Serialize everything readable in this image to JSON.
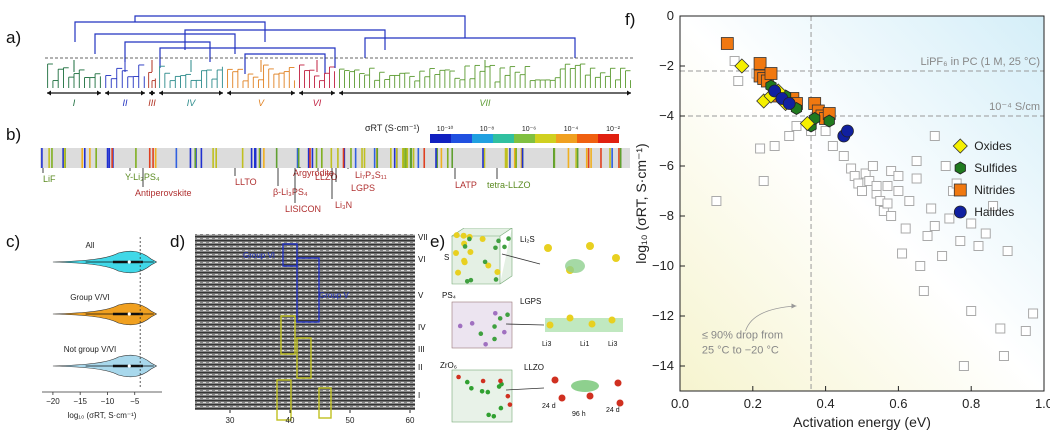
{
  "panels": {
    "a": {
      "label": "a)",
      "groups": [
        "I",
        "II",
        "III",
        "IV",
        "V",
        "VI",
        "VII"
      ],
      "group_colors": [
        "#1a6d3c",
        "#2030c0",
        "#b03020",
        "#2a8a8a",
        "#e08020",
        "#c02040",
        "#5a9a30"
      ]
    },
    "b": {
      "label": "b)",
      "colorbar_title": "σRT (S·cm⁻¹)",
      "colorbar_ticks": [
        "10⁻¹⁰",
        "10⁻⁸",
        "10⁻⁶",
        "10⁻⁴",
        "10⁻²"
      ],
      "annotations": [
        {
          "text": "LiF",
          "color": "#5a8a20"
        },
        {
          "text": "Y-Li₃PS₄",
          "color": "#5a8a20"
        },
        {
          "text": "Antiperovskite",
          "color": "#b03030"
        },
        {
          "text": "LLTO",
          "color": "#b03030"
        },
        {
          "text": "Argyrodite",
          "color": "#b03030"
        },
        {
          "text": "β-Li₃PS₄",
          "color": "#b03030"
        },
        {
          "text": "LISICON",
          "color": "#b03030"
        },
        {
          "text": "LLZO",
          "color": "#b03030"
        },
        {
          "text": "Li₇P₃S₁₁",
          "color": "#b03030"
        },
        {
          "text": "LGPS",
          "color": "#b03030"
        },
        {
          "text": "Li₃N",
          "color": "#b03030"
        },
        {
          "text": "LATP",
          "color": "#b03030"
        },
        {
          "text": "tetra-LLZO",
          "color": "#5a8a20"
        }
      ]
    },
    "c": {
      "label": "c)",
      "rows": [
        "All",
        "Group V/VI",
        "Not group V/VI"
      ],
      "xticks": [
        "−20",
        "−15",
        "−10",
        "−5"
      ],
      "xlabel": "log₁₀ (σRT, S·cm⁻¹)"
    },
    "d": {
      "label": "d)",
      "row_labels": [
        "VII",
        "VI",
        "V",
        "IV",
        "III",
        "II",
        "I"
      ],
      "box_labels": [
        "Group VI",
        "Group V"
      ],
      "xticks": [
        "30",
        "40",
        "50",
        "60"
      ]
    },
    "e": {
      "label": "e)",
      "structures": [
        "Li₂S",
        "PS₄",
        "LGPS",
        "ZrO₆",
        "LLZO"
      ],
      "sites": [
        "S",
        "Li3",
        "Li1",
        "Li3"
      ],
      "times": [
        "24 d",
        "96 h",
        "24 d"
      ]
    },
    "f": {
      "label": "f)"
    }
  },
  "chart_data": {
    "type": "scatter",
    "xlabel": "Activation energy (eV)",
    "ylabel": "log₁₀ (σRT, S·cm⁻¹)",
    "xlim": [
      0.0,
      1.0
    ],
    "ylim": [
      -15,
      0
    ],
    "xticks": [
      "0.0",
      "0.2",
      "0.4",
      "0.6",
      "0.8",
      "1.0"
    ],
    "yticks": [
      "0",
      "−2",
      "−4",
      "−6",
      "−8",
      "−10",
      "−12",
      "−14"
    ],
    "reference_lines": [
      {
        "axis": "y",
        "value": -2.2,
        "label": "LiPF₆ in PC (1 M, 25 °C)"
      },
      {
        "axis": "y",
        "value": -4.0,
        "label": "10⁻⁴ S/cm"
      },
      {
        "axis": "x",
        "value": 0.36,
        "label": "≤ 90% drop from 25 °C to −20 °C"
      }
    ],
    "legend_position": "right",
    "series": [
      {
        "name": "Oxides",
        "color": "#f5f000",
        "marker": "diamond",
        "points": [
          [
            0.17,
            -2.0
          ],
          [
            0.23,
            -3.4
          ],
          [
            0.25,
            -3.2
          ],
          [
            0.27,
            -3.0
          ],
          [
            0.29,
            -3.5
          ],
          [
            0.35,
            -4.3
          ]
        ]
      },
      {
        "name": "Sulfides",
        "color": "#1f7a1f",
        "marker": "hexagon",
        "points": [
          [
            0.25,
            -2.8
          ],
          [
            0.29,
            -3.2
          ],
          [
            0.32,
            -3.7
          ],
          [
            0.36,
            -4.4
          ],
          [
            0.37,
            -4.1
          ],
          [
            0.41,
            -4.2
          ]
        ]
      },
      {
        "name": "Nitrides",
        "color": "#f07810",
        "marker": "square",
        "points": [
          [
            0.13,
            -1.1
          ],
          [
            0.22,
            -1.9
          ],
          [
            0.22,
            -2.4
          ],
          [
            0.23,
            -2.5
          ],
          [
            0.24,
            -2.6
          ],
          [
            0.25,
            -2.3
          ],
          [
            0.27,
            -3.2
          ],
          [
            0.31,
            -3.3
          ],
          [
            0.32,
            -3.5
          ],
          [
            0.37,
            -3.5
          ],
          [
            0.38,
            -3.8
          ],
          [
            0.39,
            -4.0
          ],
          [
            0.4,
            -4.1
          ],
          [
            0.41,
            -3.9
          ]
        ]
      },
      {
        "name": "Halides",
        "color": "#1020a0",
        "marker": "circle",
        "points": [
          [
            0.26,
            -3.0
          ],
          [
            0.28,
            -3.3
          ],
          [
            0.3,
            -3.5
          ],
          [
            0.45,
            -4.8
          ],
          [
            0.46,
            -4.6
          ]
        ]
      },
      {
        "name": "",
        "color": "#999999",
        "marker": "open-square",
        "points": [
          [
            0.15,
            -1.8
          ],
          [
            0.16,
            -2.6
          ],
          [
            0.21,
            -2.3
          ],
          [
            0.22,
            -5.3
          ],
          [
            0.23,
            -6.6
          ],
          [
            0.26,
            -5.2
          ],
          [
            0.3,
            -4.8
          ],
          [
            0.32,
            -4.4
          ],
          [
            0.36,
            -4.6
          ],
          [
            0.4,
            -4.6
          ],
          [
            0.42,
            -5.2
          ],
          [
            0.45,
            -5.6
          ],
          [
            0.47,
            -6.1
          ],
          [
            0.48,
            -6.4
          ],
          [
            0.49,
            -6.7
          ],
          [
            0.5,
            -7.0
          ],
          [
            0.51,
            -6.3
          ],
          [
            0.52,
            -6.6
          ],
          [
            0.53,
            -6.0
          ],
          [
            0.54,
            -7.1
          ],
          [
            0.55,
            -7.4
          ],
          [
            0.56,
            -7.8
          ],
          [
            0.57,
            -6.8
          ],
          [
            0.58,
            -6.2
          ],
          [
            0.6,
            -7.0
          ],
          [
            0.61,
            -9.5
          ],
          [
            0.62,
            -8.5
          ],
          [
            0.63,
            -7.4
          ],
          [
            0.65,
            -6.5
          ],
          [
            0.66,
            -10.0
          ],
          [
            0.67,
            -11.0
          ],
          [
            0.68,
            -8.8
          ],
          [
            0.69,
            -7.7
          ],
          [
            0.7,
            -8.4
          ],
          [
            0.72,
            -9.6
          ],
          [
            0.73,
            -6.0
          ],
          [
            0.74,
            -8.1
          ],
          [
            0.75,
            -7.0
          ],
          [
            0.76,
            -6.7
          ],
          [
            0.77,
            -9.0
          ],
          [
            0.78,
            -14.0
          ],
          [
            0.8,
            -8.3
          ],
          [
            0.82,
            -9.2
          ],
          [
            0.84,
            -8.7
          ],
          [
            0.86,
            -7.6
          ],
          [
            0.88,
            -12.5
          ],
          [
            0.89,
            -13.6
          ],
          [
            0.9,
            -9.4
          ],
          [
            0.95,
            -12.6
          ],
          [
            0.97,
            -11.9
          ],
          [
            0.1,
            -7.4
          ],
          [
            0.7,
            -4.8
          ],
          [
            0.65,
            -5.8
          ],
          [
            0.58,
            -8.0
          ],
          [
            0.8,
            -11.8
          ],
          [
            0.6,
            -6.4
          ],
          [
            0.57,
            -7.5
          ],
          [
            0.54,
            -6.8
          ]
        ]
      }
    ]
  }
}
